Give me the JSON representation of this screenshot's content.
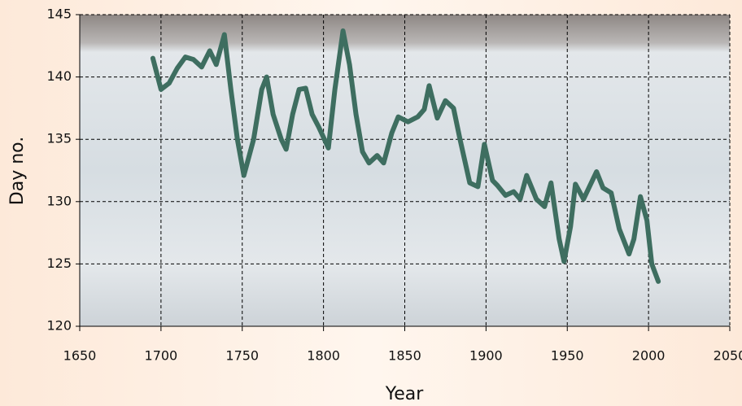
{
  "chart_data": {
    "type": "line",
    "xlabel": "Year",
    "ylabel": "Day no.",
    "x": [
      1695,
      1700,
      1705,
      1710,
      1715,
      1720,
      1725,
      1730,
      1734,
      1739,
      1743,
      1747,
      1751,
      1757,
      1762,
      1765,
      1769,
      1774,
      1777,
      1781,
      1785,
      1789,
      1793,
      1797,
      1803,
      1807,
      1812,
      1816,
      1820,
      1824,
      1828,
      1833,
      1837,
      1842,
      1846,
      1852,
      1858,
      1862,
      1865,
      1870,
      1875,
      1880,
      1884,
      1890,
      1895,
      1899,
      1904,
      1907,
      1912,
      1917,
      1921,
      1925,
      1931,
      1936,
      1940,
      1945,
      1948,
      1952,
      1955,
      1960,
      1968,
      1972,
      1977,
      1982,
      1988,
      1991,
      1995,
      1999,
      2002,
      2006
    ],
    "series": [
      {
        "color": "#3e6e60",
        "values": [
          141.5,
          139.0,
          139.5,
          140.7,
          141.6,
          141.4,
          140.8,
          142.1,
          141.0,
          143.4,
          139.0,
          135.0,
          132.1,
          135.0,
          139.0,
          140.0,
          137.0,
          135.0,
          134.2,
          137.0,
          139.0,
          139.1,
          137.0,
          136.0,
          134.3,
          139.0,
          143.7,
          141.0,
          137.0,
          134.0,
          133.1,
          133.7,
          133.1,
          135.5,
          136.8,
          136.4,
          136.8,
          137.4,
          139.3,
          136.7,
          138.1,
          137.5,
          135.0,
          131.5,
          131.2,
          134.6,
          131.7,
          131.3,
          130.5,
          130.8,
          130.2,
          132.1,
          130.2,
          129.6,
          131.5,
          127.0,
          125.2,
          128.0,
          131.4,
          130.2,
          132.4,
          131.1,
          130.7,
          127.8,
          125.8,
          127.0,
          130.4,
          128.5,
          125.0,
          123.6
        ]
      }
    ],
    "xlim": [
      1650,
      2050
    ],
    "xticks": [
      1650,
      1700,
      1750,
      1800,
      1850,
      1900,
      1950,
      2000,
      2050
    ],
    "ylim": [
      120,
      145
    ],
    "yticks": [
      120,
      125,
      130,
      135,
      140,
      145
    ],
    "grid": true
  }
}
